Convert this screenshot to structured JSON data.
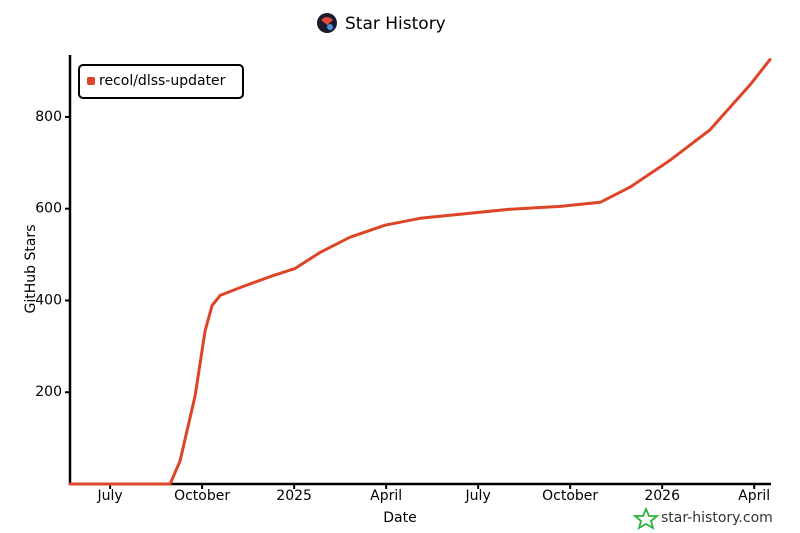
{
  "chart_data": {
    "type": "line",
    "title": "Star History",
    "xlabel": "Date",
    "ylabel": "GitHub Stars",
    "watermark": "star-history.com",
    "x": [
      2024.391,
      2024.663,
      2024.69,
      2024.731,
      2024.758,
      2024.777,
      2024.799,
      2024.853,
      2024.935,
      2025.003,
      2025.071,
      2025.152,
      2025.247,
      2025.342,
      2025.451,
      2025.587,
      2025.723,
      2025.832,
      2025.913,
      2026.022,
      2026.13,
      2026.239,
      2026.293
    ],
    "series": [
      {
        "name": "recol/dlss-updater",
        "color": "#dd4528",
        "values": [
          0,
          0,
          50,
          192,
          334,
          389,
          411,
          428,
          452,
          470,
          505,
          538,
          564,
          579,
          588,
          599,
          605,
          614,
          647,
          706,
          772,
          870,
          925
        ]
      }
    ],
    "xlim": [
      2024.391,
      2026.293
    ],
    "xticks": [
      {
        "value": 2024.5,
        "label": "July"
      },
      {
        "value": 2024.75,
        "label": "October"
      },
      2025,
      {
        "value": 2025.25,
        "label": "April"
      },
      {
        "value": 2025.5,
        "label": "July"
      },
      {
        "value": 2025.75,
        "label": "October"
      },
      2026,
      {
        "value": 2026.25,
        "label": "April"
      }
    ],
    "ylim": [
      0,
      935
    ],
    "yticks": [
      200,
      400,
      600,
      800
    ],
    "grid": false
  }
}
